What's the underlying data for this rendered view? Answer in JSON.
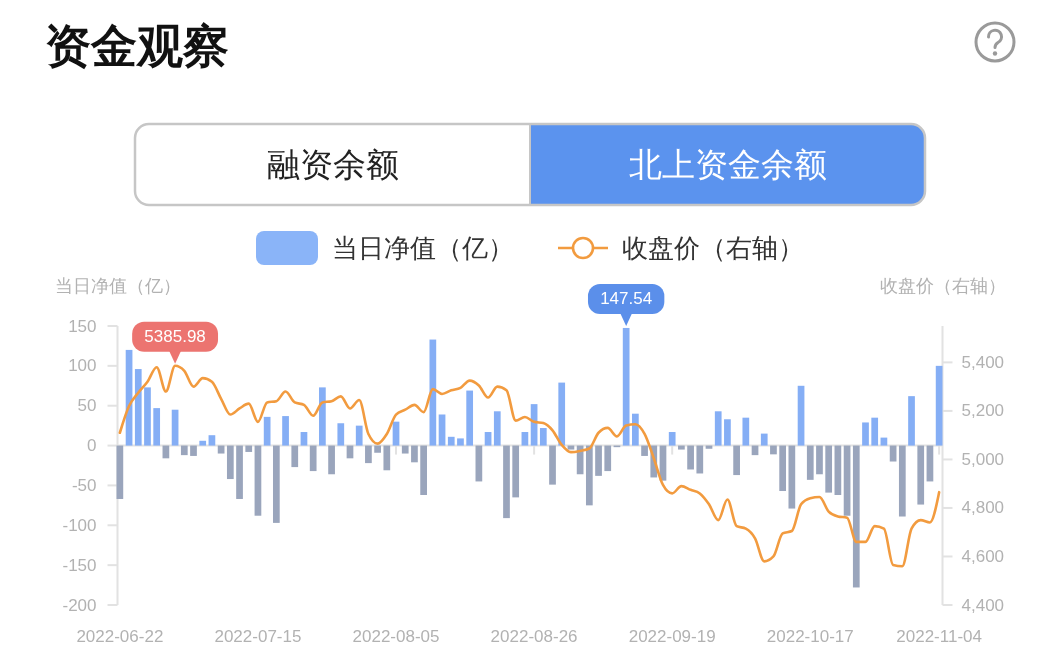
{
  "chart_data": {
    "type": "bar",
    "title": "资金观察",
    "annotations": [
      "融资余额",
      "北上资金余额"
    ],
    "legend": "top",
    "ylabel": "当日净值（亿）",
    "y2label": "收盘价（右轴）",
    "ylim": [
      -200,
      150
    ],
    "yticks": [
      -200,
      -150,
      -100,
      -50,
      0,
      50,
      100,
      150
    ],
    "y2lim": [
      4400,
      5550
    ],
    "y2ticks": [
      {
        "value": 4400,
        "label": "4,400"
      },
      {
        "value": 4600,
        "label": "4,600"
      },
      {
        "value": 4800,
        "label": "4,800"
      },
      {
        "value": 5000,
        "label": "5,000"
      },
      {
        "value": 5200,
        "label": "5,200"
      },
      {
        "value": 5400,
        "label": "5,400"
      }
    ],
    "categories": [
      "2022-06-22",
      null,
      null,
      null,
      null,
      null,
      null,
      null,
      null,
      null,
      null,
      null,
      null,
      null,
      null,
      "2022-07-15",
      null,
      null,
      null,
      null,
      null,
      null,
      null,
      null,
      null,
      null,
      null,
      null,
      null,
      null,
      "2022-08-05",
      null,
      null,
      null,
      null,
      null,
      null,
      null,
      null,
      null,
      null,
      null,
      null,
      null,
      null,
      "2022-08-26",
      null,
      null,
      null,
      null,
      null,
      null,
      null,
      null,
      null,
      null,
      null,
      null,
      null,
      null,
      "2022-09-19",
      null,
      null,
      null,
      null,
      null,
      null,
      null,
      null,
      null,
      null,
      null,
      null,
      null,
      null,
      "2022-10-17",
      null,
      null,
      null,
      null,
      null,
      null,
      null,
      null,
      null,
      null,
      null,
      null,
      null,
      "2022-11-04"
    ],
    "series": [
      {
        "name": "当日净值（亿）",
        "color": "#8ab4f8",
        "values": [
          -67,
          120,
          96,
          73,
          47,
          -16,
          45,
          -12,
          -13,
          6,
          13,
          -10,
          -42,
          -67,
          -8,
          -88,
          36,
          -97,
          37,
          -27,
          17,
          -32,
          73,
          -36,
          28,
          -16,
          25,
          -22,
          -9,
          -31,
          30,
          -10,
          -21,
          -62,
          133,
          39,
          11,
          9,
          69,
          -45,
          17,
          43,
          -91,
          -65,
          17,
          52,
          22,
          -49,
          79,
          -5,
          -36,
          -75,
          -38,
          -32,
          -2,
          147.54,
          40,
          -13,
          -40,
          -44,
          17,
          -5,
          -30,
          -35,
          -4,
          43,
          33,
          -37,
          35,
          -12,
          15,
          -11,
          -57,
          -79,
          75,
          -43,
          -36,
          -59,
          -62,
          -88,
          -178,
          29,
          35,
          10,
          -20,
          -89,
          62,
          -74,
          -45,
          100
        ],
        "colors": [
          "#9aa5bc",
          "#85aef5",
          "#85aef5",
          "#85aef5",
          "#85aef5",
          "#9aa5bc",
          "#85aef5",
          "#9aa5bc",
          "#9aa5bc",
          "#85aef5",
          "#85aef5",
          "#9aa5bc",
          "#9aa5bc",
          "#9aa5bc",
          "#9aa5bc",
          "#9aa5bc",
          "#85aef5",
          "#9aa5bc",
          "#85aef5",
          "#9aa5bc",
          "#85aef5",
          "#9aa5bc",
          "#85aef5",
          "#9aa5bc",
          "#85aef5",
          "#9aa5bc",
          "#85aef5",
          "#9aa5bc",
          "#9aa5bc",
          "#9aa5bc",
          "#85aef5",
          "#9aa5bc",
          "#9aa5bc",
          "#9aa5bc",
          "#85aef5",
          "#85aef5",
          "#85aef5",
          "#85aef5",
          "#85aef5",
          "#9aa5bc",
          "#85aef5",
          "#85aef5",
          "#9aa5bc",
          "#9aa5bc",
          "#85aef5",
          "#85aef5",
          "#85aef5",
          "#9aa5bc",
          "#85aef5",
          "#9aa5bc",
          "#9aa5bc",
          "#9aa5bc",
          "#9aa5bc",
          "#9aa5bc",
          "#9aa5bc",
          "#85aef5",
          "#85aef5",
          "#9aa5bc",
          "#9aa5bc",
          "#9aa5bc",
          "#85aef5",
          "#9aa5bc",
          "#9aa5bc",
          "#9aa5bc",
          "#9aa5bc",
          "#85aef5",
          "#85aef5",
          "#9aa5bc",
          "#85aef5",
          "#9aa5bc",
          "#85aef5",
          "#9aa5bc",
          "#9aa5bc",
          "#9aa5bc",
          "#85aef5",
          "#9aa5bc",
          "#9aa5bc",
          "#9aa5bc",
          "#9aa5bc",
          "#9aa5bc",
          "#9aa5bc",
          "#85aef5",
          "#85aef5",
          "#85aef5",
          "#9aa5bc",
          "#9aa5bc",
          "#85aef5",
          "#9aa5bc",
          "#9aa5bc",
          "#85aef5"
        ],
        "value_labels": [
          null,
          null,
          null,
          null,
          null,
          null,
          null,
          null,
          null,
          null,
          null,
          null,
          null,
          null,
          null,
          null,
          null,
          null,
          null,
          null,
          null,
          null,
          null,
          null,
          null,
          null,
          null,
          null,
          null,
          null,
          null,
          null,
          null,
          null,
          null,
          null,
          null,
          null,
          null,
          null,
          null,
          null,
          null,
          null,
          null,
          null,
          null,
          null,
          null,
          null,
          null,
          null,
          null,
          null,
          null,
          "147.54",
          null,
          null,
          null,
          null,
          null,
          null,
          null,
          null,
          null,
          null,
          null,
          null,
          null,
          null,
          null,
          null,
          null,
          null,
          null,
          null,
          null,
          null,
          null,
          null,
          null,
          null,
          null,
          null,
          null,
          null,
          null,
          null,
          null,
          null
        ]
      },
      {
        "name": "收盘价（右轴）",
        "type": "line",
        "axis": "y2",
        "color": "#f29b3f",
        "values": [
          5110,
          5220,
          5275,
          5320,
          5380,
          5280,
          5385.98,
          5365,
          5300,
          5335,
          5320,
          5250,
          5185,
          5210,
          5230,
          5155,
          5235,
          5240,
          5280,
          5235,
          5225,
          5180,
          5235,
          5240,
          5260,
          5210,
          5245,
          5105,
          5065,
          5105,
          5185,
          5205,
          5225,
          5195,
          5290,
          5270,
          5285,
          5295,
          5325,
          5305,
          5255,
          5300,
          5285,
          5160,
          5175,
          5155,
          5150,
          5120,
          5060,
          5030,
          5035,
          5045,
          5110,
          5130,
          5095,
          5140,
          5145,
          5105,
          5005,
          4895,
          4860,
          4890,
          4875,
          4860,
          4815,
          4750,
          4835,
          4725,
          4715,
          4675,
          4580,
          4600,
          4695,
          4705,
          4815,
          4840,
          4845,
          4785,
          4765,
          4760,
          4660,
          4660,
          4725,
          4715,
          4565,
          4560,
          4715,
          4750,
          4740,
          4865
        ],
        "value_labels": [
          null,
          null,
          null,
          null,
          null,
          null,
          "5385.98",
          null,
          null,
          null,
          null,
          null,
          null,
          null,
          null,
          null,
          null,
          null,
          null,
          null,
          null,
          null,
          null,
          null,
          null,
          null,
          null,
          null,
          null,
          null,
          null,
          null,
          null,
          null,
          null,
          null,
          null,
          null,
          null,
          null,
          null,
          null,
          null,
          null,
          null,
          null,
          null,
          null,
          null,
          null,
          null,
          null,
          null,
          null,
          null,
          null,
          null,
          null,
          null,
          null,
          null,
          null,
          null,
          null,
          null,
          null,
          null,
          null,
          null,
          null,
          null,
          null,
          null,
          null,
          null,
          null,
          null,
          null,
          null,
          null,
          null,
          null,
          null,
          null,
          null,
          null,
          null,
          null,
          null,
          null
        ]
      }
    ]
  }
}
